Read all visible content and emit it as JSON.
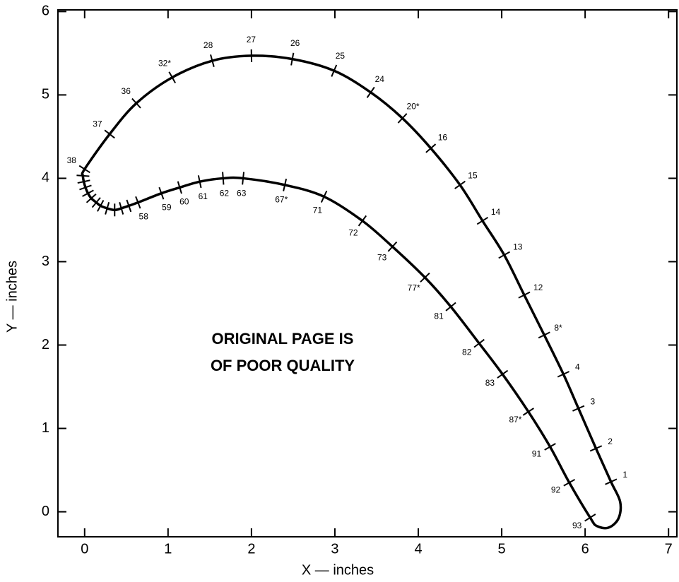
{
  "chart_data": {
    "type": "profile",
    "xlabel": "X — inches",
    "ylabel": "Y — inches",
    "annotations": [
      "ORIGINAL PAGE IS",
      "OF POOR QUALITY"
    ],
    "xlim": [
      -0.32,
      7.1
    ],
    "ylim": [
      -0.3,
      6.02
    ],
    "xticks": [
      0,
      1,
      2,
      3,
      4,
      5,
      6,
      7
    ],
    "yticks": [
      0,
      1,
      2,
      3,
      4,
      5,
      6
    ],
    "color": "#000000",
    "stations": {
      "labels": [
        "1",
        "2",
        "3",
        "4",
        "8*",
        "12",
        "13",
        "14",
        "15",
        "16",
        "20*",
        "24",
        "25",
        "26",
        "27",
        "28",
        "32*",
        "36",
        "37",
        "38",
        null,
        null,
        null,
        null,
        null,
        null,
        null,
        null,
        null,
        null,
        null,
        "58",
        "59",
        "60",
        "61",
        "62",
        "63",
        "67*",
        "71",
        "72",
        "73",
        "77*",
        "81",
        "82",
        "83",
        "87*",
        "91",
        "92",
        "93"
      ],
      "x": [
        6.31,
        6.13,
        5.92,
        5.74,
        5.51,
        5.27,
        5.03,
        4.77,
        4.5,
        4.15,
        3.81,
        3.43,
        2.99,
        2.49,
        2.0,
        1.53,
        1.05,
        0.62,
        0.3,
        0.0,
        -0.02,
        -0.01,
        0.01,
        0.04,
        0.08,
        0.14,
        0.19,
        0.27,
        0.36,
        0.44,
        0.53,
        0.64,
        0.92,
        1.14,
        1.38,
        1.66,
        1.9,
        2.4,
        2.87,
        3.33,
        3.69,
        4.08,
        4.39,
        4.73,
        5.01,
        5.32,
        5.58,
        5.81,
        6.06
      ],
      "y": [
        0.36,
        0.76,
        1.24,
        1.65,
        2.12,
        2.6,
        3.08,
        3.49,
        3.92,
        4.36,
        4.72,
        5.03,
        5.29,
        5.43,
        5.47,
        5.41,
        5.21,
        4.9,
        4.53,
        4.11,
        4.03,
        3.96,
        3.89,
        3.82,
        3.76,
        3.71,
        3.67,
        3.64,
        3.62,
        3.64,
        3.67,
        3.71,
        3.82,
        3.89,
        3.96,
        4.0,
        4.0,
        3.92,
        3.78,
        3.49,
        3.18,
        2.81,
        2.46,
        2.02,
        1.65,
        1.2,
        0.78,
        0.35,
        -0.07
      ]
    },
    "trailing_edge": {
      "x": [
        6.14,
        6.28,
        6.4,
        6.42
      ],
      "y": [
        -0.17,
        -0.19,
        -0.08,
        0.12
      ]
    }
  }
}
